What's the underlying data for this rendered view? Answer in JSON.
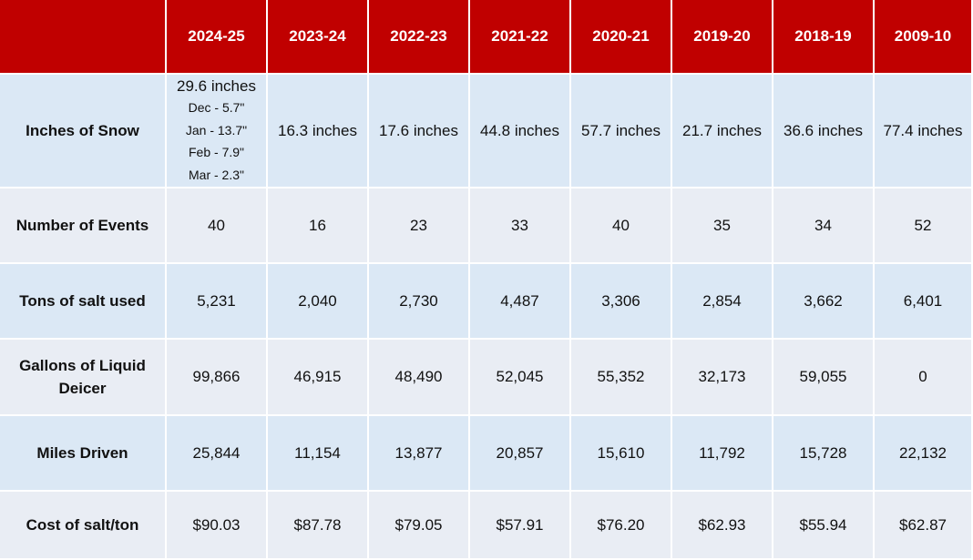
{
  "table": {
    "header": [
      "2024-25",
      "2023-24",
      "2022-23",
      "2021-22",
      "2020-21",
      "2019-20",
      "2018-19",
      "2009-10"
    ],
    "rows": [
      {
        "label": "Inches of Snow",
        "cells": [
          [
            "29.6 inches",
            "Dec - 5.7\"",
            "Jan - 13.7\"",
            "Feb - 7.9\"",
            "Mar - 2.3\""
          ],
          "16.3 inches",
          "17.6 inches",
          "44.8 inches",
          "57.7 inches",
          "21.7 inches",
          "36.6 inches",
          "77.4 inches"
        ]
      },
      {
        "label": "Number of Events",
        "cells": [
          "40",
          "16",
          "23",
          "33",
          "40",
          "35",
          "34",
          "52"
        ]
      },
      {
        "label": "Tons of salt used",
        "cells": [
          "5,231",
          "2,040",
          "2,730",
          "4,487",
          "3,306",
          "2,854",
          "3,662",
          "6,401"
        ]
      },
      {
        "label": "Gallons of Liquid Deicer",
        "cells": [
          "99,866",
          "46,915",
          "48,490",
          "52,045",
          "55,352",
          "32,173",
          "59,055",
          "0"
        ]
      },
      {
        "label": "Miles Driven",
        "cells": [
          "25,844",
          "11,154",
          "13,877",
          "20,857",
          "15,610",
          "11,792",
          "15,728",
          "22,132"
        ]
      },
      {
        "label": "Cost of salt/ton",
        "cells": [
          "$90.03",
          "$87.78",
          "$79.05",
          "$57.91",
          "$76.20",
          "$62.93",
          "$55.94",
          "$62.87"
        ]
      }
    ]
  }
}
